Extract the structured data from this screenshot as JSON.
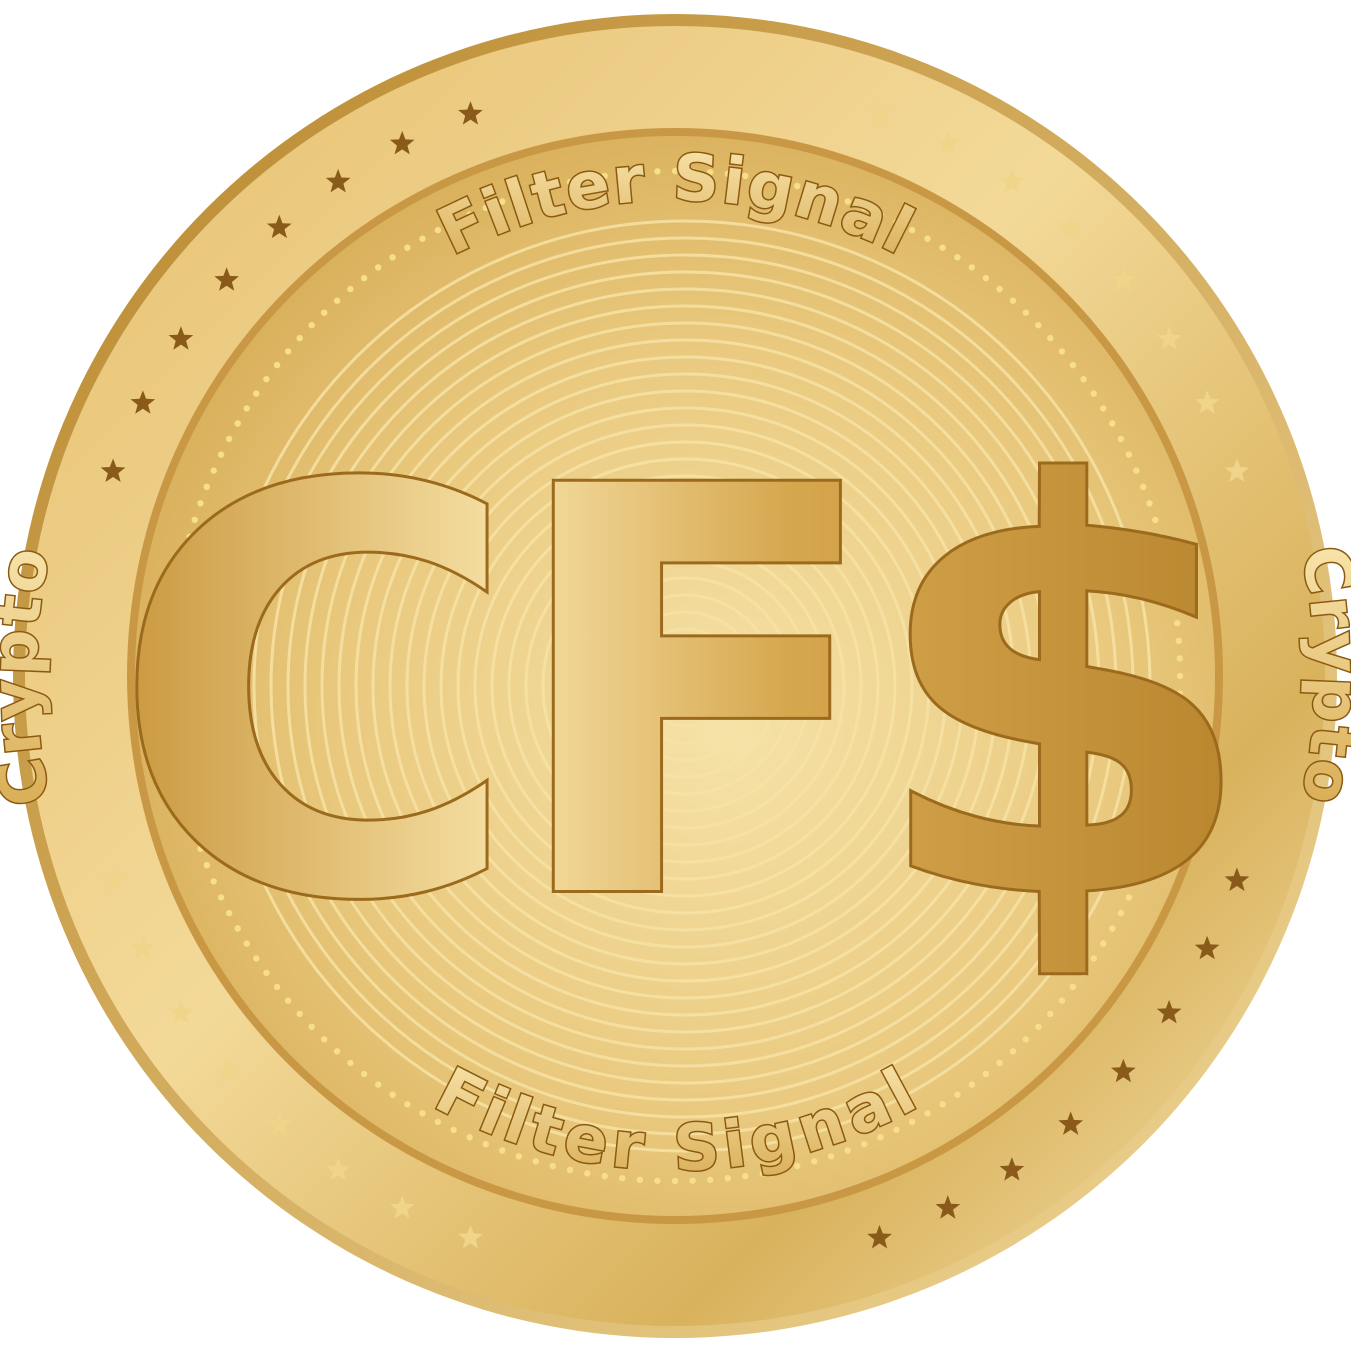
{
  "coin": {
    "rim_top_text": "Filter Signal",
    "rim_bottom_text": "Filter Signal",
    "rim_left_text": "Crypto",
    "rim_right_text": "Crypto",
    "monogram": "CF$",
    "colors": {
      "gold_light": "#f7e2a6",
      "gold_mid": "#e2bd66",
      "gold_dark": "#b98a32",
      "star_dark": "#8a5a1a",
      "star_light": "#f0d489"
    }
  }
}
